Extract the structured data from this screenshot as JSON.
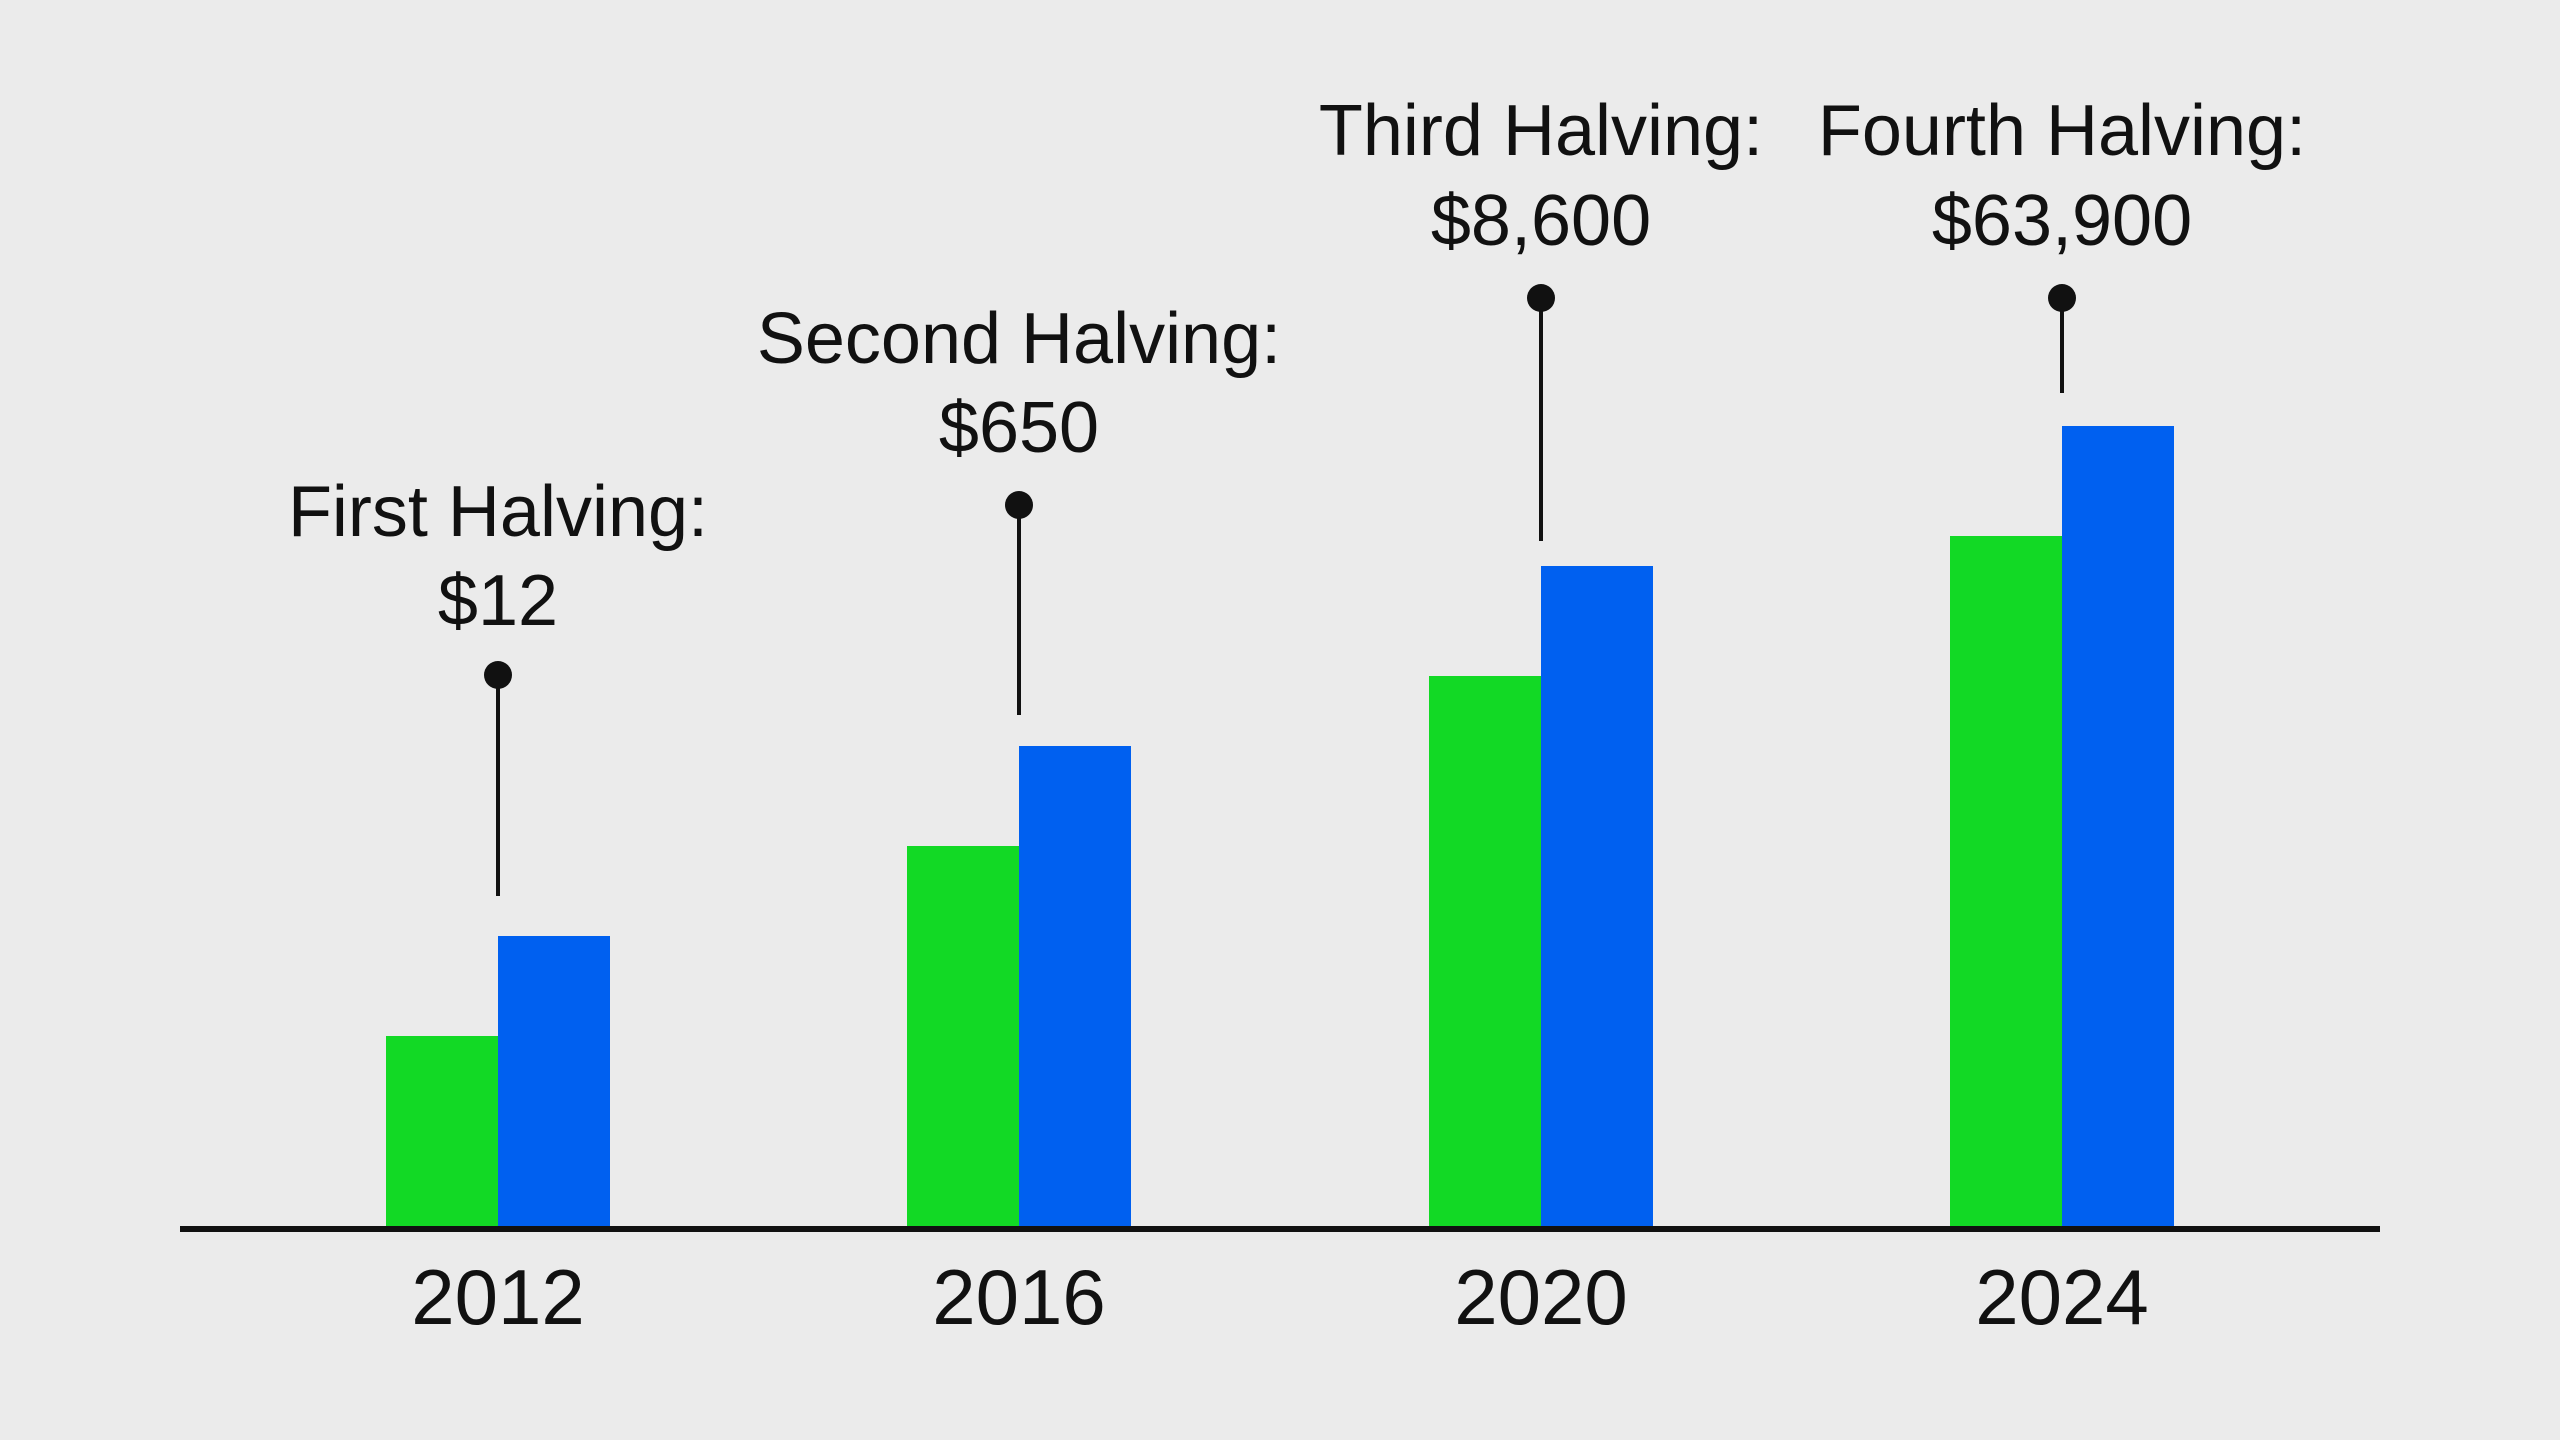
{
  "chart_data": {
    "type": "bar",
    "title": "",
    "xlabel": "",
    "ylabel": "",
    "categories": [
      "2012",
      "2016",
      "2020",
      "2024"
    ],
    "series": [
      {
        "color": "#12d925",
        "values": [
          19,
          38,
          55,
          69
        ]
      },
      {
        "color": "#0060f0",
        "values": [
          29,
          48,
          66,
          80
        ]
      }
    ],
    "ylim": [
      0,
      100
    ],
    "grid": false,
    "legend": "none",
    "annotations": [
      {
        "category": "2012",
        "line1": "First Halving:",
        "line2": "$12"
      },
      {
        "category": "2016",
        "line1": "Second Halving:",
        "line2": "$650"
      },
      {
        "category": "2020",
        "line1": "Third Halving:",
        "line2": "$8,600"
      },
      {
        "category": "2024",
        "line1": "Fourth Halving:",
        "line2": "$63,900"
      }
    ]
  },
  "colors": {
    "background": "#ebebeb",
    "axis": "#111111",
    "text": "#111111"
  }
}
